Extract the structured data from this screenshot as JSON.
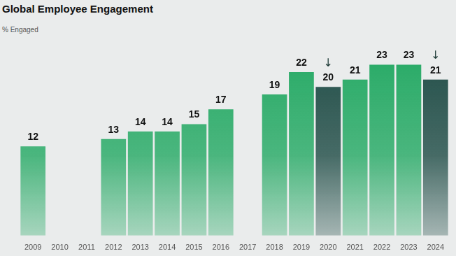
{
  "chart_data": {
    "type": "bar",
    "title": "Global Employee Engagement",
    "subtitle": "% Engaged",
    "categories": [
      "2009",
      "2010",
      "2011",
      "2012",
      "2013",
      "2014",
      "2015",
      "2016",
      "2017",
      "2018",
      "2019",
      "2020",
      "2021",
      "2022",
      "2023",
      "2024"
    ],
    "values": [
      12,
      null,
      null,
      13,
      14,
      14,
      15,
      17,
      null,
      19,
      22,
      20,
      21,
      23,
      23,
      21
    ],
    "colors": [
      "#22a862",
      "#22a862",
      "#22a862",
      "#22a862",
      "#22a862",
      "#22a862",
      "#22a862",
      "#22a862",
      "#22a862",
      "#22a862",
      "#22a862",
      "#1d4a44",
      "#22a862",
      "#22a862",
      "#22a862",
      "#1d4a44"
    ],
    "annotations": [
      {
        "category": "2020",
        "text": "↓"
      },
      {
        "category": "2024",
        "text": "↓"
      }
    ],
    "ylim": [
      0,
      27
    ],
    "grid": false,
    "data_labels": true,
    "tick_labels": "x"
  }
}
